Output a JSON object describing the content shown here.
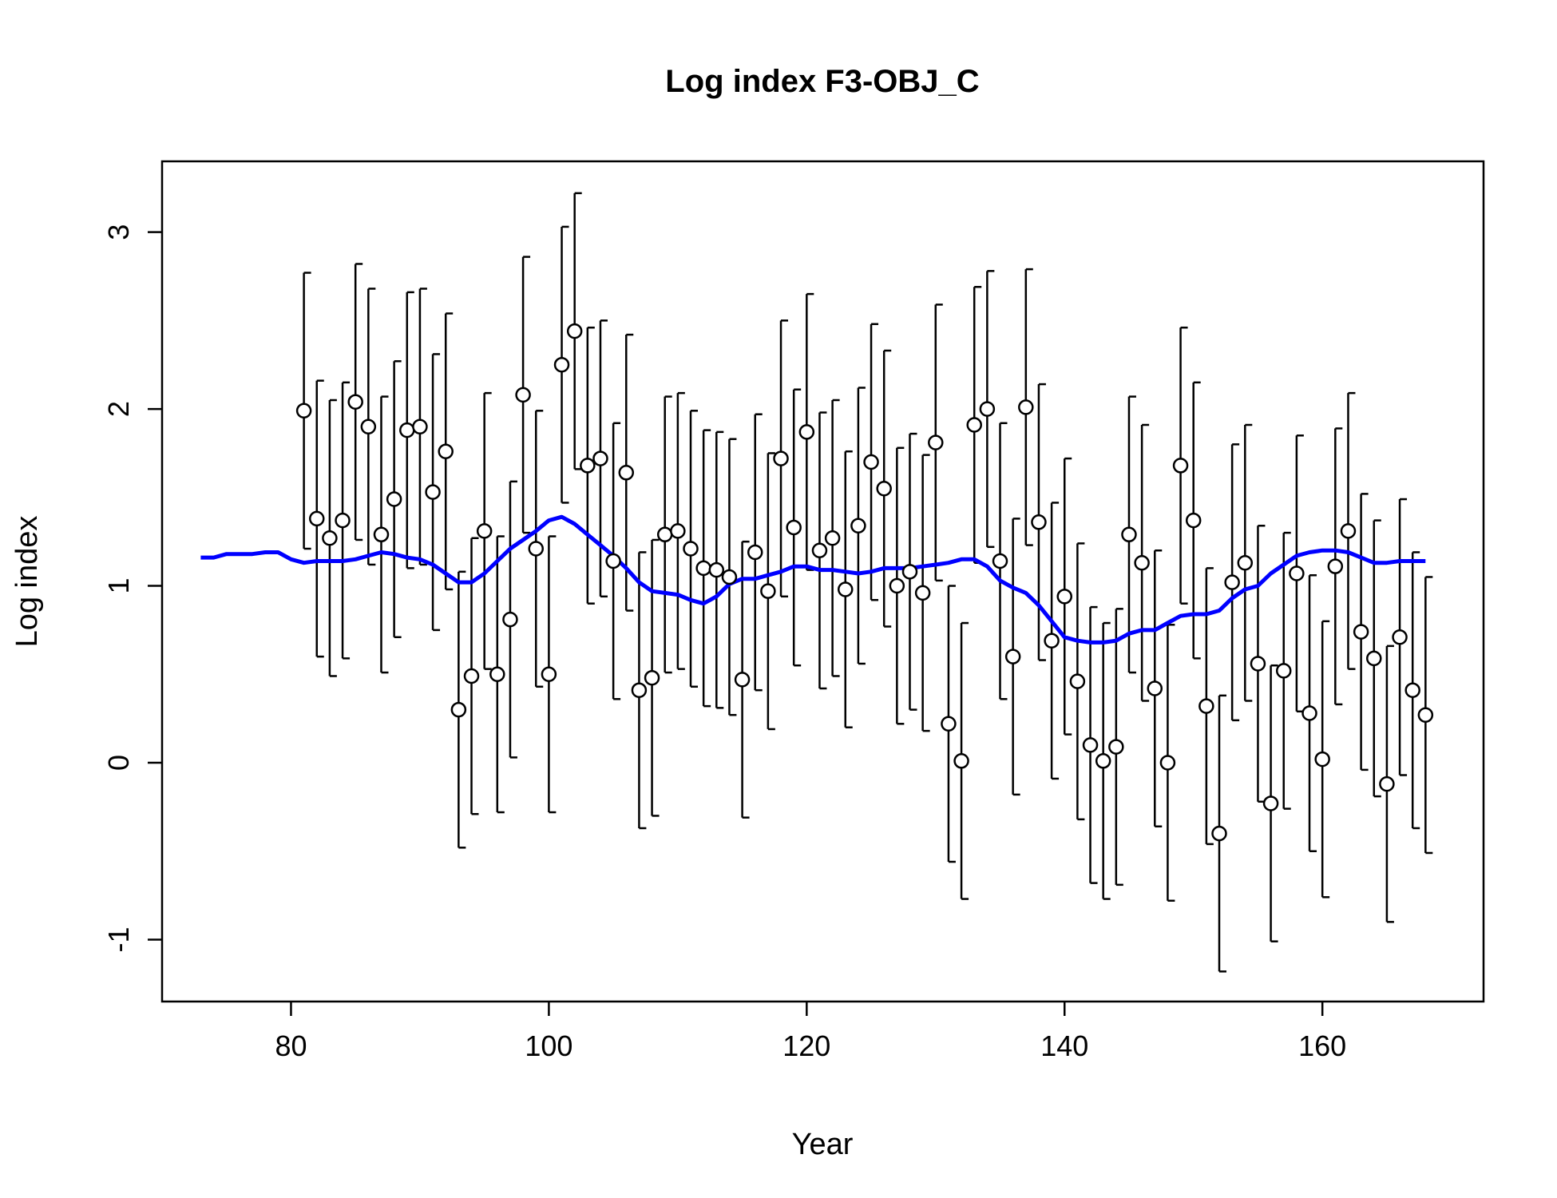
{
  "chart_data": {
    "type": "scatter",
    "title": "Log index F3-OBJ_C",
    "xlabel": "Year",
    "ylabel": "Log index",
    "xlim": [
      70,
      172.5
    ],
    "ylim": [
      -1.35,
      3.4
    ],
    "xticks": [
      80,
      100,
      120,
      140,
      160
    ],
    "yticks": [
      -1,
      0,
      1,
      2,
      3
    ],
    "grid": false,
    "colors": {
      "points": "#000000",
      "fit_line": "#0000ff"
    },
    "observations": [
      {
        "x": 81,
        "y": 1.99,
        "lo": 1.21,
        "hi": 2.77
      },
      {
        "x": 82,
        "y": 1.38,
        "lo": 0.6,
        "hi": 2.16
      },
      {
        "x": 83,
        "y": 1.27,
        "lo": 0.49,
        "hi": 2.05
      },
      {
        "x": 84,
        "y": 1.37,
        "lo": 0.59,
        "hi": 2.15
      },
      {
        "x": 85,
        "y": 2.04,
        "lo": 1.26,
        "hi": 2.82
      },
      {
        "x": 86,
        "y": 1.9,
        "lo": 1.12,
        "hi": 2.68
      },
      {
        "x": 87,
        "y": 1.29,
        "lo": 0.51,
        "hi": 2.07
      },
      {
        "x": 88,
        "y": 1.49,
        "lo": 0.71,
        "hi": 2.27
      },
      {
        "x": 89,
        "y": 1.88,
        "lo": 1.1,
        "hi": 2.66
      },
      {
        "x": 90,
        "y": 1.9,
        "lo": 1.12,
        "hi": 2.68
      },
      {
        "x": 91,
        "y": 1.53,
        "lo": 0.75,
        "hi": 2.31
      },
      {
        "x": 92,
        "y": 1.76,
        "lo": 0.98,
        "hi": 2.54
      },
      {
        "x": 93,
        "y": 0.3,
        "lo": -0.48,
        "hi": 1.08
      },
      {
        "x": 94,
        "y": 0.49,
        "lo": -0.29,
        "hi": 1.27
      },
      {
        "x": 95,
        "y": 1.31,
        "lo": 0.53,
        "hi": 2.09
      },
      {
        "x": 96,
        "y": 0.5,
        "lo": -0.28,
        "hi": 1.28
      },
      {
        "x": 97,
        "y": 0.81,
        "lo": 0.03,
        "hi": 1.59
      },
      {
        "x": 98,
        "y": 2.08,
        "lo": 1.3,
        "hi": 2.86
      },
      {
        "x": 99,
        "y": 1.21,
        "lo": 0.43,
        "hi": 1.99
      },
      {
        "x": 100,
        "y": 0.5,
        "lo": -0.28,
        "hi": 1.28
      },
      {
        "x": 101,
        "y": 2.25,
        "lo": 1.47,
        "hi": 3.03
      },
      {
        "x": 102,
        "y": 2.44,
        "lo": 1.66,
        "hi": 3.22
      },
      {
        "x": 103,
        "y": 1.68,
        "lo": 0.9,
        "hi": 2.46
      },
      {
        "x": 104,
        "y": 1.72,
        "lo": 0.94,
        "hi": 2.5
      },
      {
        "x": 105,
        "y": 1.14,
        "lo": 0.36,
        "hi": 1.92
      },
      {
        "x": 106,
        "y": 1.64,
        "lo": 0.86,
        "hi": 2.42
      },
      {
        "x": 107,
        "y": 0.41,
        "lo": -0.37,
        "hi": 1.19
      },
      {
        "x": 108,
        "y": 0.48,
        "lo": -0.3,
        "hi": 1.26
      },
      {
        "x": 109,
        "y": 1.29,
        "lo": 0.51,
        "hi": 2.07
      },
      {
        "x": 110,
        "y": 1.31,
        "lo": 0.53,
        "hi": 2.09
      },
      {
        "x": 111,
        "y": 1.21,
        "lo": 0.43,
        "hi": 1.99
      },
      {
        "x": 112,
        "y": 1.1,
        "lo": 0.32,
        "hi": 1.88
      },
      {
        "x": 113,
        "y": 1.09,
        "lo": 0.31,
        "hi": 1.87
      },
      {
        "x": 114,
        "y": 1.05,
        "lo": 0.27,
        "hi": 1.83
      },
      {
        "x": 115,
        "y": 0.47,
        "lo": -0.31,
        "hi": 1.25
      },
      {
        "x": 116,
        "y": 1.19,
        "lo": 0.41,
        "hi": 1.97
      },
      {
        "x": 117,
        "y": 0.97,
        "lo": 0.19,
        "hi": 1.75
      },
      {
        "x": 118,
        "y": 1.72,
        "lo": 0.94,
        "hi": 2.5
      },
      {
        "x": 119,
        "y": 1.33,
        "lo": 0.55,
        "hi": 2.11
      },
      {
        "x": 120,
        "y": 1.87,
        "lo": 1.09,
        "hi": 2.65
      },
      {
        "x": 121,
        "y": 1.2,
        "lo": 0.42,
        "hi": 1.98
      },
      {
        "x": 122,
        "y": 1.27,
        "lo": 0.49,
        "hi": 2.05
      },
      {
        "x": 123,
        "y": 0.98,
        "lo": 0.2,
        "hi": 1.76
      },
      {
        "x": 124,
        "y": 1.34,
        "lo": 0.56,
        "hi": 2.12
      },
      {
        "x": 125,
        "y": 1.7,
        "lo": 0.92,
        "hi": 2.48
      },
      {
        "x": 126,
        "y": 1.55,
        "lo": 0.77,
        "hi": 2.33
      },
      {
        "x": 127,
        "y": 1.0,
        "lo": 0.22,
        "hi": 1.78
      },
      {
        "x": 128,
        "y": 1.08,
        "lo": 0.3,
        "hi": 1.86
      },
      {
        "x": 129,
        "y": 0.96,
        "lo": 0.18,
        "hi": 1.74
      },
      {
        "x": 130,
        "y": 1.81,
        "lo": 1.03,
        "hi": 2.59
      },
      {
        "x": 131,
        "y": 0.22,
        "lo": -0.56,
        "hi": 1.0
      },
      {
        "x": 132,
        "y": 0.01,
        "lo": -0.77,
        "hi": 0.79
      },
      {
        "x": 133,
        "y": 1.91,
        "lo": 1.13,
        "hi": 2.69
      },
      {
        "x": 134,
        "y": 2.0,
        "lo": 1.22,
        "hi": 2.78
      },
      {
        "x": 135,
        "y": 1.14,
        "lo": 0.36,
        "hi": 1.92
      },
      {
        "x": 136,
        "y": 0.6,
        "lo": -0.18,
        "hi": 1.38
      },
      {
        "x": 137,
        "y": 2.01,
        "lo": 1.23,
        "hi": 2.79
      },
      {
        "x": 138,
        "y": 1.36,
        "lo": 0.58,
        "hi": 2.14
      },
      {
        "x": 139,
        "y": 0.69,
        "lo": -0.09,
        "hi": 1.47
      },
      {
        "x": 140,
        "y": 0.94,
        "lo": 0.16,
        "hi": 1.72
      },
      {
        "x": 141,
        "y": 0.46,
        "lo": -0.32,
        "hi": 1.24
      },
      {
        "x": 142,
        "y": 0.1,
        "lo": -0.68,
        "hi": 0.88
      },
      {
        "x": 143,
        "y": 0.01,
        "lo": -0.77,
        "hi": 0.79
      },
      {
        "x": 144,
        "y": 0.09,
        "lo": -0.69,
        "hi": 0.87
      },
      {
        "x": 145,
        "y": 1.29,
        "lo": 0.51,
        "hi": 2.07
      },
      {
        "x": 146,
        "y": 1.13,
        "lo": 0.35,
        "hi": 1.91
      },
      {
        "x": 147,
        "y": 0.42,
        "lo": -0.36,
        "hi": 1.2
      },
      {
        "x": 148,
        "y": 0.0,
        "lo": -0.78,
        "hi": 0.78
      },
      {
        "x": 149,
        "y": 1.68,
        "lo": 0.9,
        "hi": 2.46
      },
      {
        "x": 150,
        "y": 1.37,
        "lo": 0.59,
        "hi": 2.15
      },
      {
        "x": 151,
        "y": 0.32,
        "lo": -0.46,
        "hi": 1.1
      },
      {
        "x": 152,
        "y": -0.4,
        "lo": -1.18,
        "hi": 0.38
      },
      {
        "x": 153,
        "y": 1.02,
        "lo": 0.24,
        "hi": 1.8
      },
      {
        "x": 154,
        "y": 1.13,
        "lo": 0.35,
        "hi": 1.91
      },
      {
        "x": 155,
        "y": 0.56,
        "lo": -0.22,
        "hi": 1.34
      },
      {
        "x": 156,
        "y": -0.23,
        "lo": -1.01,
        "hi": 0.55
      },
      {
        "x": 157,
        "y": 0.52,
        "lo": -0.26,
        "hi": 1.3
      },
      {
        "x": 158,
        "y": 1.07,
        "lo": 0.29,
        "hi": 1.85
      },
      {
        "x": 159,
        "y": 0.28,
        "lo": -0.5,
        "hi": 1.06
      },
      {
        "x": 160,
        "y": 0.02,
        "lo": -0.76,
        "hi": 0.8
      },
      {
        "x": 161,
        "y": 1.11,
        "lo": 0.33,
        "hi": 1.89
      },
      {
        "x": 162,
        "y": 1.31,
        "lo": 0.53,
        "hi": 2.09
      },
      {
        "x": 163,
        "y": 0.74,
        "lo": -0.04,
        "hi": 1.52
      },
      {
        "x": 164,
        "y": 0.59,
        "lo": -0.19,
        "hi": 1.37
      },
      {
        "x": 165,
        "y": -0.12,
        "lo": -0.9,
        "hi": 0.66
      },
      {
        "x": 166,
        "y": 0.71,
        "lo": -0.07,
        "hi": 1.49
      },
      {
        "x": 167,
        "y": 0.41,
        "lo": -0.37,
        "hi": 1.19
      },
      {
        "x": 168,
        "y": 0.27,
        "lo": -0.51,
        "hi": 1.05
      }
    ],
    "fit_line": {
      "x": [
        73,
        74,
        75,
        76,
        77,
        78,
        79,
        80,
        81,
        82,
        83,
        84,
        85,
        86,
        87,
        88,
        89,
        90,
        91,
        92,
        93,
        94,
        95,
        96,
        97,
        98,
        99,
        100,
        101,
        102,
        103,
        104,
        105,
        106,
        107,
        108,
        109,
        110,
        111,
        112,
        113,
        114,
        115,
        116,
        117,
        118,
        119,
        120,
        121,
        122,
        123,
        124,
        125,
        126,
        127,
        128,
        129,
        130,
        131,
        132,
        133,
        134,
        135,
        136,
        137,
        138,
        139,
        140,
        141,
        142,
        143,
        144,
        145,
        146,
        147,
        148,
        149,
        150,
        151,
        152,
        153,
        154,
        155,
        156,
        157,
        158,
        159,
        160,
        161,
        162,
        163,
        164,
        165,
        166,
        167,
        168
      ],
      "y": [
        1.16,
        1.16,
        1.18,
        1.18,
        1.18,
        1.19,
        1.19,
        1.15,
        1.13,
        1.14,
        1.14,
        1.14,
        1.15,
        1.17,
        1.19,
        1.18,
        1.16,
        1.15,
        1.12,
        1.07,
        1.02,
        1.02,
        1.07,
        1.14,
        1.21,
        1.26,
        1.31,
        1.37,
        1.39,
        1.35,
        1.29,
        1.23,
        1.17,
        1.1,
        1.02,
        0.97,
        0.96,
        0.95,
        0.92,
        0.9,
        0.94,
        1.01,
        1.04,
        1.04,
        1.06,
        1.08,
        1.11,
        1.11,
        1.09,
        1.09,
        1.08,
        1.07,
        1.08,
        1.1,
        1.1,
        1.1,
        1.11,
        1.12,
        1.13,
        1.15,
        1.15,
        1.11,
        1.03,
        0.99,
        0.96,
        0.89,
        0.8,
        0.71,
        0.69,
        0.68,
        0.68,
        0.69,
        0.73,
        0.75,
        0.75,
        0.79,
        0.83,
        0.84,
        0.84,
        0.86,
        0.93,
        0.98,
        1.0,
        1.07,
        1.12,
        1.17,
        1.19,
        1.2,
        1.2,
        1.19,
        1.16,
        1.13,
        1.13,
        1.14,
        1.14,
        1.14
      ]
    }
  }
}
